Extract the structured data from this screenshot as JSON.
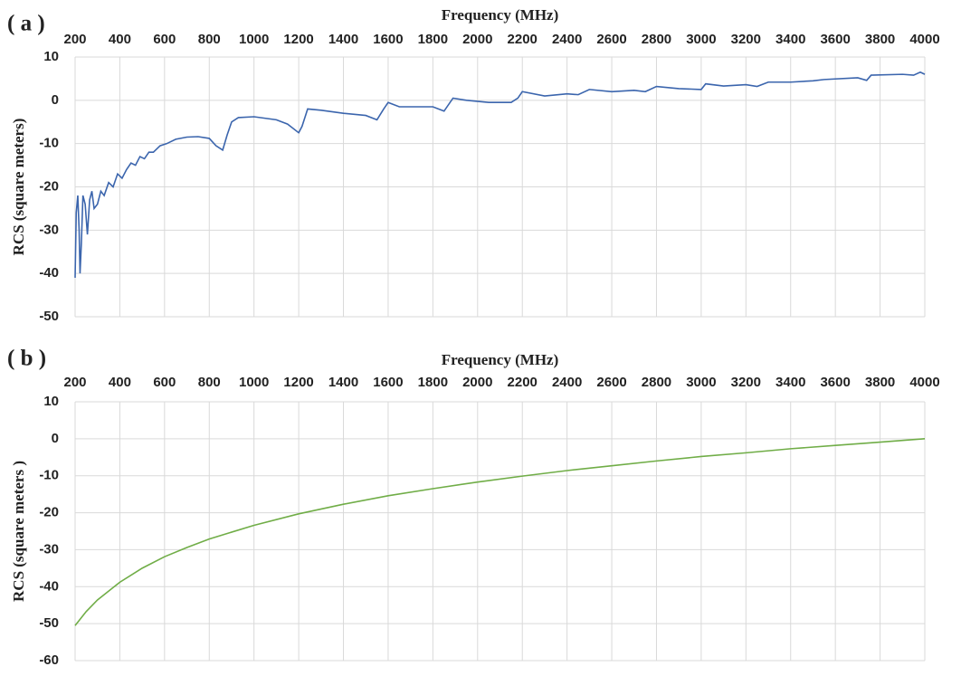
{
  "chart_data": [
    {
      "type": "line",
      "panel_label": "( a )",
      "xlabel": "Frequency (MHz)",
      "ylabel": "RCS (square meters)",
      "xaxis_position": "top",
      "grid": true,
      "color": "#3b65ad",
      "x": [
        200,
        205,
        212,
        218,
        222,
        228,
        235,
        245,
        255,
        265,
        275,
        285,
        300,
        315,
        330,
        350,
        370,
        390,
        410,
        430,
        450,
        470,
        490,
        510,
        530,
        550,
        580,
        610,
        650,
        700,
        750,
        800,
        830,
        860,
        880,
        900,
        930,
        1000,
        1100,
        1150,
        1200,
        1215,
        1240,
        1300,
        1400,
        1500,
        1550,
        1580,
        1600,
        1650,
        1750,
        1800,
        1850,
        1890,
        1950,
        2050,
        2150,
        2180,
        2200,
        2300,
        2400,
        2450,
        2500,
        2600,
        2700,
        2750,
        2800,
        2900,
        3000,
        3020,
        3100,
        3200,
        3250,
        3300,
        3400,
        3500,
        3550,
        3700,
        3740,
        3760,
        3900,
        3950,
        3980,
        4000
      ],
      "values": [
        -41,
        -26,
        -22,
        -30,
        -40,
        -33,
        -22,
        -24,
        -31,
        -23,
        -21,
        -25,
        -24,
        -21,
        -22,
        -19,
        -20,
        -17,
        -18,
        -16,
        -14.5,
        -15,
        -13,
        -13.5,
        -12,
        -12,
        -10.5,
        -10,
        -9,
        -8.5,
        -8.4,
        -8.8,
        -10.5,
        -11.5,
        -8,
        -5,
        -4,
        -3.8,
        -4.5,
        -5.5,
        -7.5,
        -6,
        -2,
        -2.3,
        -3,
        -3.5,
        -4.5,
        -2,
        -0.5,
        -1.5,
        -1.5,
        -1.5,
        -2.5,
        0.5,
        0,
        -0.5,
        -0.5,
        0.5,
        2,
        1,
        1.5,
        1.3,
        2.5,
        2,
        2.3,
        2,
        3.2,
        2.7,
        2.5,
        3.8,
        3.3,
        3.6,
        3.2,
        4.2,
        4.2,
        4.5,
        4.8,
        5.2,
        4.6,
        5.8,
        6,
        5.8,
        6.5,
        6
      ],
      "xlim": [
        200,
        4000
      ],
      "xticks": [
        200,
        400,
        600,
        800,
        1000,
        1200,
        1400,
        1600,
        1800,
        2000,
        2200,
        2400,
        2600,
        2800,
        3000,
        3200,
        3400,
        3600,
        3800,
        4000
      ],
      "ylim": [
        -50,
        10
      ],
      "yticks": [
        -50,
        -40,
        -30,
        -20,
        -10,
        0,
        10
      ]
    },
    {
      "type": "line",
      "panel_label": "( b )",
      "xlabel": "Frequency (MHz)",
      "ylabel": "RCS (square meters )",
      "xaxis_position": "top",
      "grid": true,
      "color": "#70ad47",
      "x": [
        200,
        250,
        300,
        400,
        500,
        600,
        700,
        800,
        1000,
        1200,
        1400,
        1600,
        1800,
        2000,
        2200,
        2400,
        2600,
        2800,
        3000,
        3200,
        3400,
        3600,
        3800,
        4000
      ],
      "values": [
        -50.5,
        -46.7,
        -43.6,
        -38.8,
        -35.0,
        -31.9,
        -29.4,
        -27.1,
        -23.4,
        -20.3,
        -17.7,
        -15.4,
        -13.5,
        -11.7,
        -10.1,
        -8.6,
        -7.3,
        -6.0,
        -4.8,
        -3.8,
        -2.7,
        -1.8,
        -0.9,
        0
      ],
      "xlim": [
        200,
        4000
      ],
      "xticks": [
        200,
        400,
        600,
        800,
        1000,
        1200,
        1400,
        1600,
        1800,
        2000,
        2200,
        2400,
        2600,
        2800,
        3000,
        3200,
        3400,
        3600,
        3800,
        4000
      ],
      "ylim": [
        -60,
        10
      ],
      "yticks": [
        -60,
        -50,
        -40,
        -30,
        -20,
        -10,
        0,
        10
      ]
    }
  ]
}
